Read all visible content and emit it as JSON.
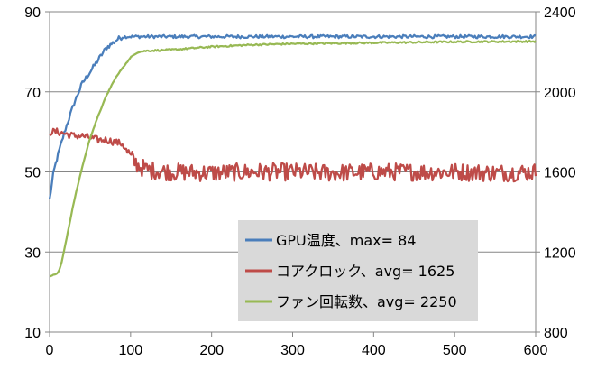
{
  "chart_data": {
    "type": "line",
    "title": "",
    "xlabel": "",
    "ylabel": "",
    "y2label": "",
    "xlim": [
      0,
      600
    ],
    "ylim": [
      10,
      90
    ],
    "y2lim": [
      800,
      2400
    ],
    "x_ticks": [
      0,
      100,
      200,
      300,
      400,
      500,
      600
    ],
    "y_ticks": [
      10,
      30,
      50,
      70,
      90
    ],
    "y2_ticks": [
      800,
      1200,
      1600,
      2000,
      2400
    ],
    "grid": "horizontal",
    "legend": {
      "position": "inside-bottom-right",
      "background": "#d9d9d9"
    },
    "series": [
      {
        "name": "GPU温度、max= 84",
        "axis": "left",
        "color": "#4a7ebb",
        "x": [
          0,
          5,
          10,
          20,
          30,
          40,
          50,
          60,
          70,
          80,
          85,
          90,
          95,
          100,
          150,
          200,
          300,
          400,
          500,
          600
        ],
        "y": [
          43,
          50,
          54,
          61,
          67,
          72,
          75,
          78,
          81,
          82.5,
          83.3,
          83.7,
          83.8,
          83.8,
          83.8,
          83.8,
          83.8,
          83.8,
          83.8,
          83.8
        ]
      },
      {
        "name": "コアクロック、avg= 1625",
        "axis": "right",
        "color": "#be4b48",
        "x": [
          0,
          10,
          20,
          30,
          40,
          50,
          60,
          70,
          80,
          90,
          100,
          110,
          120,
          150,
          200,
          250,
          300,
          350,
          400,
          450,
          500,
          550,
          600
        ],
        "y": [
          1800,
          1800,
          1790,
          1780,
          1780,
          1770,
          1760,
          1760,
          1750,
          1740,
          1670,
          1630,
          1610,
          1600,
          1595,
          1600,
          1600,
          1595,
          1600,
          1600,
          1600,
          1595,
          1600
        ]
      },
      {
        "name": "ファン回転数、avg= 2250",
        "axis": "right",
        "color": "#98b954",
        "x": [
          0,
          5,
          10,
          12,
          15,
          20,
          25,
          30,
          40,
          50,
          60,
          70,
          80,
          90,
          100,
          105,
          110,
          120,
          150,
          200,
          250,
          300,
          400,
          500,
          600
        ],
        "y": [
          1080,
          1085,
          1095,
          1110,
          1150,
          1250,
          1350,
          1450,
          1620,
          1770,
          1880,
          1980,
          2060,
          2120,
          2170,
          2190,
          2200,
          2205,
          2210,
          2225,
          2235,
          2240,
          2245,
          2250,
          2252
        ]
      }
    ]
  }
}
